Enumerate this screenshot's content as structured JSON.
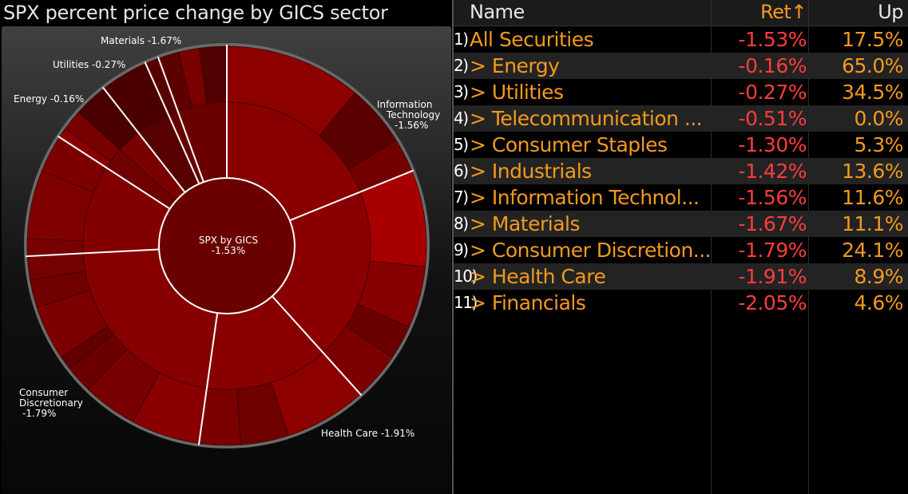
{
  "chart": {
    "title": "SPX percent price change by GICS sector",
    "center_label": "SPX by GICS",
    "center_value": "-1.53%",
    "labels": {
      "materials": "Materials -1.67%",
      "utilities": "Utilities -0.27%",
      "energy": "Energy -0.16%",
      "it_line1": "Information",
      "it_line2": "Technology",
      "it_line3": "-1.56%",
      "cd_line1": "Consumer",
      "cd_line2": "Discretionary",
      "cd_line3": "-1.79%",
      "health": "Health Care -1.91%"
    }
  },
  "table": {
    "headers": {
      "name": "Name",
      "ret": "Ret↑",
      "up": "Up"
    },
    "rows": [
      {
        "num": "1)",
        "name": "All Securities",
        "ret": "-1.53%",
        "up": "17.5%"
      },
      {
        "num": "2)",
        "name": "> Energy",
        "ret": "-0.16%",
        "up": "65.0%"
      },
      {
        "num": "3)",
        "name": "> Utilities",
        "ret": "-0.27%",
        "up": "34.5%"
      },
      {
        "num": "4)",
        "name": "> Telecommunication ...",
        "ret": "-0.51%",
        "up": "0.0%"
      },
      {
        "num": "5)",
        "name": "> Consumer Staples",
        "ret": "-1.30%",
        "up": "5.3%"
      },
      {
        "num": "6)",
        "name": "> Industrials",
        "ret": "-1.42%",
        "up": "13.6%"
      },
      {
        "num": "7)",
        "name": "> Information Technol...",
        "ret": "-1.56%",
        "up": "11.6%"
      },
      {
        "num": "8)",
        "name": "> Materials",
        "ret": "-1.67%",
        "up": "11.1%"
      },
      {
        "num": "9)",
        "name": "> Consumer Discretion...",
        "ret": "-1.79%",
        "up": "24.1%"
      },
      {
        "num": "10)",
        "name": "> Health Care",
        "ret": "-1.91%",
        "up": "8.9%"
      },
      {
        "num": "11)",
        "name": "> Financials",
        "ret": "-2.05%",
        "up": "4.6%"
      }
    ]
  },
  "colors": {
    "accent": "#f39a1e",
    "negative": "#ff3c3c",
    "sector_dark": "#5a0000",
    "sector_mid": "#8a0000",
    "sector_bright": "#b00000"
  }
}
